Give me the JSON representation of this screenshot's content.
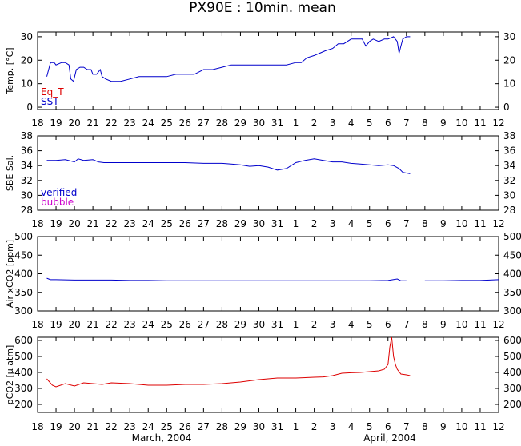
{
  "title": "PX90E : 10min. mean",
  "month_labels": [
    "March, 2004",
    "April, 2004"
  ],
  "x_tick_labels": [
    "18",
    "19",
    "20",
    "21",
    "22",
    "23",
    "24",
    "25",
    "26",
    "27",
    "28",
    "29",
    "30",
    "31",
    "1",
    "2",
    "3",
    "4",
    "5",
    "6",
    "7",
    "8",
    "9",
    "10",
    "11",
    "12"
  ],
  "colors": {
    "sst": "#0000cc",
    "eq_t": "#dd0000",
    "verified": "#0000cc",
    "bubble": "#cc00cc",
    "pco2": "#dd0000"
  },
  "chart_data": [
    {
      "type": "line",
      "ylabel": "Temp. [°C]",
      "ylim": [
        -1,
        32
      ],
      "yticks": [
        0,
        10,
        20,
        30
      ],
      "legend": [
        "Eq_T",
        "SST"
      ],
      "legend_placement": "bottom-left",
      "series": [
        {
          "name": "SST",
          "x": [
            0.5,
            0.7,
            0.9,
            1.0,
            1.3,
            1.5,
            1.7,
            1.8,
            1.95,
            2.1,
            2.3,
            2.5,
            2.7,
            2.9,
            3.0,
            3.2,
            3.4,
            3.5,
            3.7,
            4.0,
            4.5,
            5.0,
            5.5,
            6.0,
            6.5,
            7.0,
            7.5,
            8.0,
            8.5,
            9.0,
            9.5,
            10.0,
            10.5,
            11.0,
            11.5,
            12.0,
            12.5,
            13.0,
            13.5,
            14.0,
            14.3,
            14.6,
            15.0,
            15.3,
            15.6,
            16.0,
            16.3,
            16.6,
            17.0,
            17.3,
            17.6,
            17.8,
            18.0,
            18.2,
            18.5,
            18.8,
            19.0,
            19.3,
            19.5,
            19.6,
            19.8,
            20.0,
            20.2
          ],
          "values": [
            13,
            19,
            19,
            18,
            19,
            19,
            18,
            12,
            11,
            16,
            17,
            17,
            16,
            16,
            14,
            14,
            16,
            13,
            12,
            11,
            11,
            12,
            13,
            13,
            13,
            13,
            14,
            14,
            14,
            16,
            16,
            17,
            18,
            18,
            18,
            18,
            18,
            18,
            18,
            19,
            19,
            21,
            22,
            23,
            24,
            25,
            27,
            27,
            29,
            29,
            29,
            26,
            28,
            29,
            28,
            29,
            29,
            30,
            28,
            23,
            29,
            30,
            30
          ]
        }
      ]
    },
    {
      "type": "line",
      "ylabel": "SBE Sal.",
      "ylim": [
        28,
        38
      ],
      "yticks": [
        28,
        30,
        32,
        34,
        36,
        38
      ],
      "legend": [
        "verified",
        "bubble"
      ],
      "legend_placement": "bottom-left",
      "series": [
        {
          "name": "verified",
          "x": [
            0.5,
            1.0,
            1.5,
            2.0,
            2.2,
            2.5,
            3.0,
            3.3,
            3.6,
            4.0,
            5.0,
            6.0,
            7.0,
            8.0,
            9.0,
            10.0,
            10.5,
            11.0,
            11.5,
            12.0,
            12.5,
            13.0,
            13.5,
            14.0,
            14.5,
            15.0,
            15.5,
            16.0,
            16.5,
            17.0,
            17.5,
            18.0,
            18.5,
            19.0,
            19.3,
            19.6,
            19.8,
            20.0,
            20.2
          ],
          "values": [
            34.7,
            34.7,
            34.8,
            34.5,
            34.9,
            34.7,
            34.8,
            34.5,
            34.4,
            34.4,
            34.4,
            34.4,
            34.4,
            34.4,
            34.3,
            34.3,
            34.2,
            34.1,
            33.9,
            34.0,
            33.8,
            33.4,
            33.6,
            34.4,
            34.7,
            34.9,
            34.7,
            34.5,
            34.5,
            34.3,
            34.2,
            34.1,
            34.0,
            34.1,
            34.0,
            33.6,
            33.1,
            33.0,
            32.9
          ]
        }
      ]
    },
    {
      "type": "line",
      "ylabel": "Air xCO2 [ppm]",
      "ylim": [
        300,
        500
      ],
      "yticks": [
        300,
        350,
        400,
        450,
        500
      ],
      "series": [
        {
          "name": "",
          "x": [
            0.5,
            0.7,
            1.0,
            2.0,
            3.0,
            4.0,
            5.0,
            6.0,
            7.0,
            8.0,
            9.0,
            10.0,
            11.0,
            12.0,
            13.0,
            14.0,
            15.0,
            16.0,
            17.0,
            18.0,
            19.0,
            19.5,
            19.7,
            20.0
          ],
          "values": [
            388,
            384,
            384,
            383,
            383,
            383,
            382,
            382,
            381,
            381,
            381,
            381,
            381,
            381,
            381,
            381,
            381,
            381,
            381,
            381,
            382,
            386,
            381,
            381
          ]
        },
        {
          "name": "",
          "x": [
            21.0,
            22.0,
            23.0,
            24.0,
            24.5,
            25.0
          ],
          "values": [
            381,
            381,
            382,
            382,
            383,
            384
          ]
        }
      ]
    },
    {
      "type": "line",
      "ylabel": "pCO2 [μ atm]",
      "ylim": [
        150,
        620
      ],
      "yticks": [
        200,
        300,
        400,
        500,
        600
      ],
      "series": [
        {
          "name": "",
          "x": [
            0.5,
            0.8,
            1.0,
            1.5,
            2.0,
            2.5,
            3.0,
            3.5,
            4.0,
            5.0,
            6.0,
            7.0,
            8.0,
            9.0,
            10.0,
            11.0,
            12.0,
            13.0,
            14.0,
            15.0,
            15.5,
            16.0,
            16.5,
            17.0,
            17.5,
            18.0,
            18.5,
            18.8,
            19.0,
            19.1,
            19.2,
            19.3,
            19.4,
            19.5,
            19.7,
            20.0,
            20.2
          ],
          "values": [
            360,
            320,
            310,
            330,
            315,
            335,
            330,
            325,
            335,
            330,
            320,
            320,
            325,
            325,
            330,
            340,
            355,
            365,
            365,
            370,
            372,
            380,
            395,
            398,
            400,
            405,
            410,
            420,
            450,
            560,
            620,
            500,
            450,
            420,
            390,
            385,
            380
          ]
        }
      ]
    }
  ]
}
